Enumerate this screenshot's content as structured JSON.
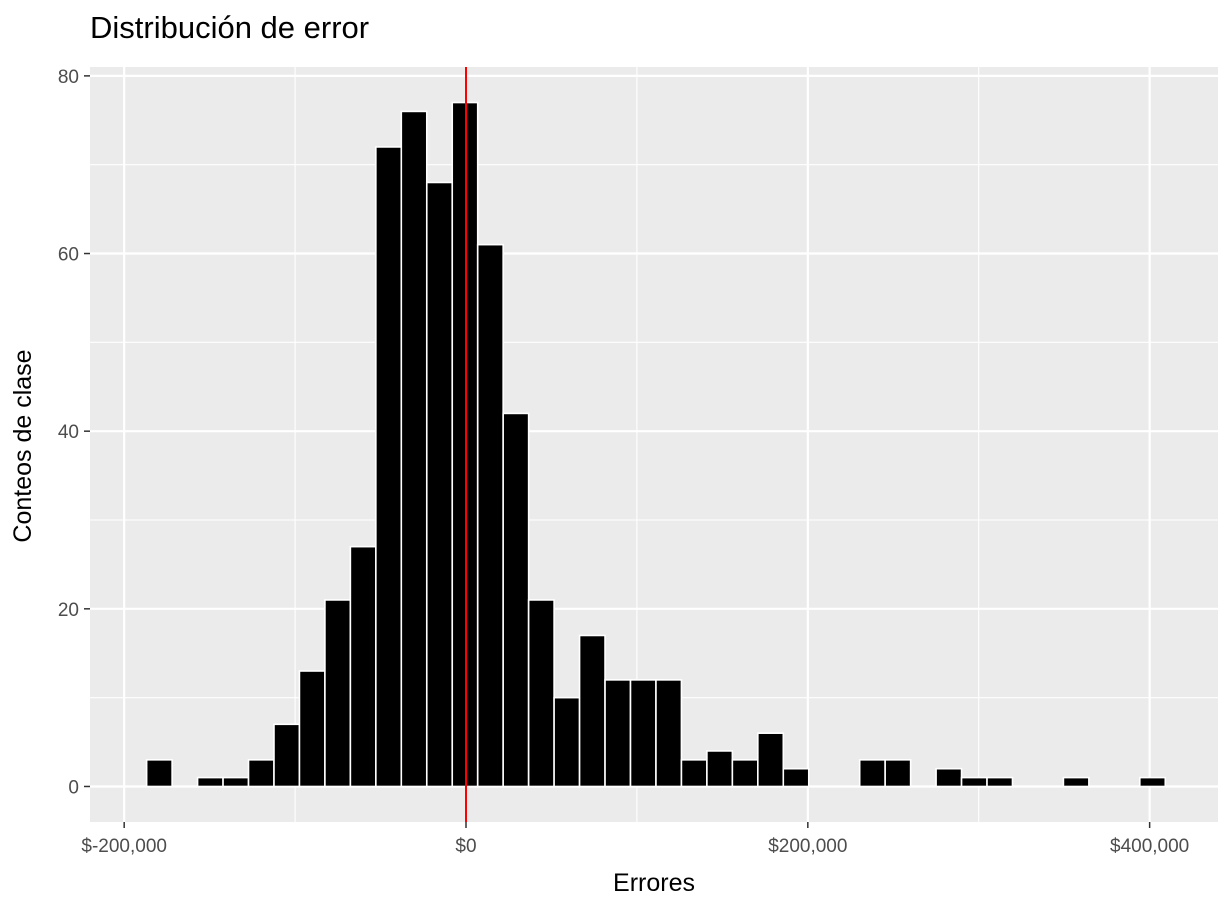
{
  "chart_data": {
    "type": "bar",
    "title": "Distribución de error",
    "xlabel": "Errores",
    "ylabel": "Conteos de clase",
    "xlim": [
      -220000,
      440000
    ],
    "ylim": [
      -4,
      81
    ],
    "bin_width": 14900,
    "bins": [
      {
        "x": -179400,
        "count": 3
      },
      {
        "x": -164500,
        "count": 0
      },
      {
        "x": -149600,
        "count": 1
      },
      {
        "x": -134700,
        "count": 1
      },
      {
        "x": -119800,
        "count": 3
      },
      {
        "x": -104900,
        "count": 7
      },
      {
        "x": -90000,
        "count": 13
      },
      {
        "x": -75100,
        "count": 21
      },
      {
        "x": -60200,
        "count": 27
      },
      {
        "x": -45300,
        "count": 72
      },
      {
        "x": -30400,
        "count": 76
      },
      {
        "x": -15500,
        "count": 68
      },
      {
        "x": -600,
        "count": 77
      },
      {
        "x": 14300,
        "count": 61
      },
      {
        "x": 29200,
        "count": 42
      },
      {
        "x": 44100,
        "count": 21
      },
      {
        "x": 59000,
        "count": 10
      },
      {
        "x": 73900,
        "count": 17
      },
      {
        "x": 88800,
        "count": 12
      },
      {
        "x": 103700,
        "count": 12
      },
      {
        "x": 118600,
        "count": 12
      },
      {
        "x": 133500,
        "count": 3
      },
      {
        "x": 148400,
        "count": 4
      },
      {
        "x": 163300,
        "count": 3
      },
      {
        "x": 178200,
        "count": 6
      },
      {
        "x": 193100,
        "count": 2
      },
      {
        "x": 208000,
        "count": 0
      },
      {
        "x": 222900,
        "count": 0
      },
      {
        "x": 237800,
        "count": 3
      },
      {
        "x": 252700,
        "count": 3
      },
      {
        "x": 267600,
        "count": 0
      },
      {
        "x": 282500,
        "count": 2
      },
      {
        "x": 297400,
        "count": 1
      },
      {
        "x": 312300,
        "count": 1
      },
      {
        "x": 327200,
        "count": 0
      },
      {
        "x": 342100,
        "count": 0
      },
      {
        "x": 357000,
        "count": 1
      },
      {
        "x": 371900,
        "count": 0
      },
      {
        "x": 386800,
        "count": 0
      },
      {
        "x": 401700,
        "count": 1
      }
    ],
    "reference_line": {
      "x": 0,
      "color": "#ff0000"
    },
    "x_ticks": [
      {
        "value": -200000,
        "label": "$-200,000"
      },
      {
        "value": 0,
        "label": "$0"
      },
      {
        "value": 200000,
        "label": "$200,000"
      },
      {
        "value": 400000,
        "label": "$400,000"
      }
    ],
    "x_minor_ticks": [
      -100000,
      100000,
      300000
    ],
    "y_ticks": [
      {
        "value": 0,
        "label": "0"
      },
      {
        "value": 20,
        "label": "20"
      },
      {
        "value": 40,
        "label": "40"
      },
      {
        "value": 60,
        "label": "60"
      },
      {
        "value": 80,
        "label": "80"
      }
    ],
    "y_minor_ticks": [
      10,
      30,
      50,
      70
    ],
    "grid": true,
    "colors": {
      "panel": "#ebebeb",
      "grid": "#ffffff",
      "bar_fill": "#000000",
      "bar_stroke": "#ffffff",
      "tick_text": "#4d4d4d",
      "tick_mark": "#333333"
    }
  }
}
